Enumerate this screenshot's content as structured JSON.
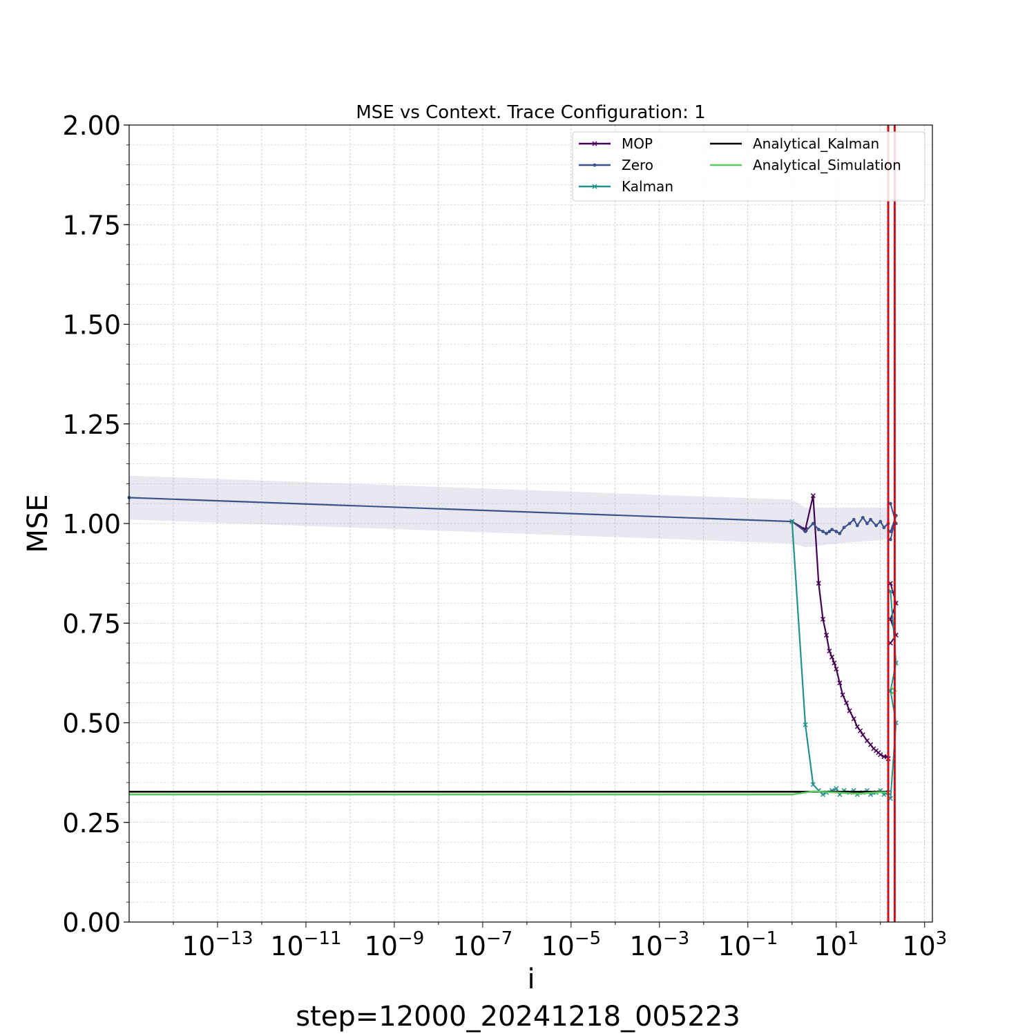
{
  "chart_data": {
    "type": "line",
    "title": "MSE vs Context. Trace Configuration: 1",
    "xlabel": "i",
    "ylabel": "MSE",
    "footer": "step=12000_20241218_005223",
    "x_scale": "log",
    "xlim": [
      1e-15,
      1500
    ],
    "ylim": [
      0,
      2
    ],
    "x_ticks": [
      {
        "base": "10",
        "exp": "−13",
        "value": 1e-13
      },
      {
        "base": "10",
        "exp": "−11",
        "value": 1e-11
      },
      {
        "base": "10",
        "exp": "−9",
        "value": 1e-09
      },
      {
        "base": "10",
        "exp": "−7",
        "value": 1e-07
      },
      {
        "base": "10",
        "exp": "−5",
        "value": 1e-05
      },
      {
        "base": "10",
        "exp": "−3",
        "value": 0.001
      },
      {
        "base": "10",
        "exp": "−1",
        "value": 0.1
      },
      {
        "base": "10",
        "exp": "1",
        "value": 10
      },
      {
        "base": "10",
        "exp": "3",
        "value": 1000
      }
    ],
    "y_ticks": [
      "0.00",
      "0.25",
      "0.50",
      "0.75",
      "1.00",
      "1.25",
      "1.50",
      "1.75",
      "2.00"
    ],
    "grid": true,
    "legend_position": "top-right",
    "series": [
      {
        "name": "MOP",
        "color": "#440154",
        "marker": "x",
        "x": [
          1,
          2,
          3,
          4,
          5,
          6,
          7,
          8,
          9,
          10,
          12,
          14,
          17,
          20,
          25,
          30,
          35,
          40,
          50,
          60,
          70,
          80,
          90,
          100,
          120,
          140,
          150
        ],
        "y": [
          1.005,
          0.985,
          1.07,
          0.85,
          0.76,
          0.72,
          0.68,
          0.665,
          0.65,
          0.635,
          0.6,
          0.57,
          0.55,
          0.53,
          0.51,
          0.49,
          0.48,
          0.47,
          0.455,
          0.445,
          0.435,
          0.43,
          0.425,
          0.42,
          0.415,
          0.415,
          0.41
        ]
      },
      {
        "name": "Zero",
        "color": "#3b528b",
        "marker": "dot",
        "x": [
          1e-15,
          1,
          2,
          3,
          4,
          5,
          6,
          7,
          8,
          10,
          12,
          15,
          20,
          25,
          30,
          40,
          50,
          60,
          80,
          100,
          120,
          150
        ],
        "y": [
          1.065,
          1.005,
          0.98,
          1.0,
          0.985,
          0.98,
          0.975,
          0.98,
          0.985,
          0.98,
          0.975,
          0.99,
          1.0,
          1.01,
          0.995,
          1.015,
          1.0,
          1.01,
          0.995,
          1.005,
          0.99,
          1.0
        ]
      },
      {
        "name": "Kalman",
        "color": "#21918c",
        "marker": "x",
        "x": [
          1,
          2,
          3,
          4,
          5,
          6,
          8,
          10,
          12,
          15,
          20,
          25,
          30,
          40,
          50,
          60,
          80,
          100,
          120,
          150
        ],
        "y": [
          1.005,
          0.495,
          0.345,
          0.33,
          0.32,
          0.325,
          0.33,
          0.335,
          0.32,
          0.33,
          0.325,
          0.33,
          0.32,
          0.325,
          0.33,
          0.32,
          0.325,
          0.33,
          0.32,
          0.325
        ]
      },
      {
        "name": "Analytical_Kalman",
        "color": "#000000",
        "marker": "none",
        "x": [
          1e-15,
          150
        ],
        "y": [
          0.327,
          0.327
        ]
      },
      {
        "name": "Analytical_Simulation",
        "color": "#5ec962",
        "marker": "none",
        "x": [
          1e-15,
          1,
          3,
          10,
          30,
          100,
          150
        ],
        "y": [
          0.32,
          0.32,
          0.328,
          0.325,
          0.322,
          0.326,
          0.325
        ]
      }
    ],
    "zero_band": {
      "color": "#e6e6f0",
      "x": [
        1e-15,
        1,
        2,
        10,
        150
      ],
      "upper": [
        1.12,
        1.06,
        1.04,
        1.04,
        1.04
      ],
      "lower": [
        1.01,
        0.95,
        0.94,
        0.95,
        0.96
      ]
    },
    "vertical_markers": [
      {
        "x": 150,
        "color": "#ff0000"
      },
      {
        "x": 210,
        "color": "#ff0000"
      }
    ],
    "overflow_segment": {
      "x": 210,
      "mop": [
        0.85,
        0.8,
        0.76,
        0.72,
        0.7
      ],
      "zero": [
        1.05,
        1.0,
        0.98,
        1.02,
        0.96
      ],
      "kalman": [
        0.83,
        0.65,
        0.58,
        0.5,
        0.31
      ],
      "sim": [
        0.59,
        0.58,
        0.57
      ]
    }
  }
}
